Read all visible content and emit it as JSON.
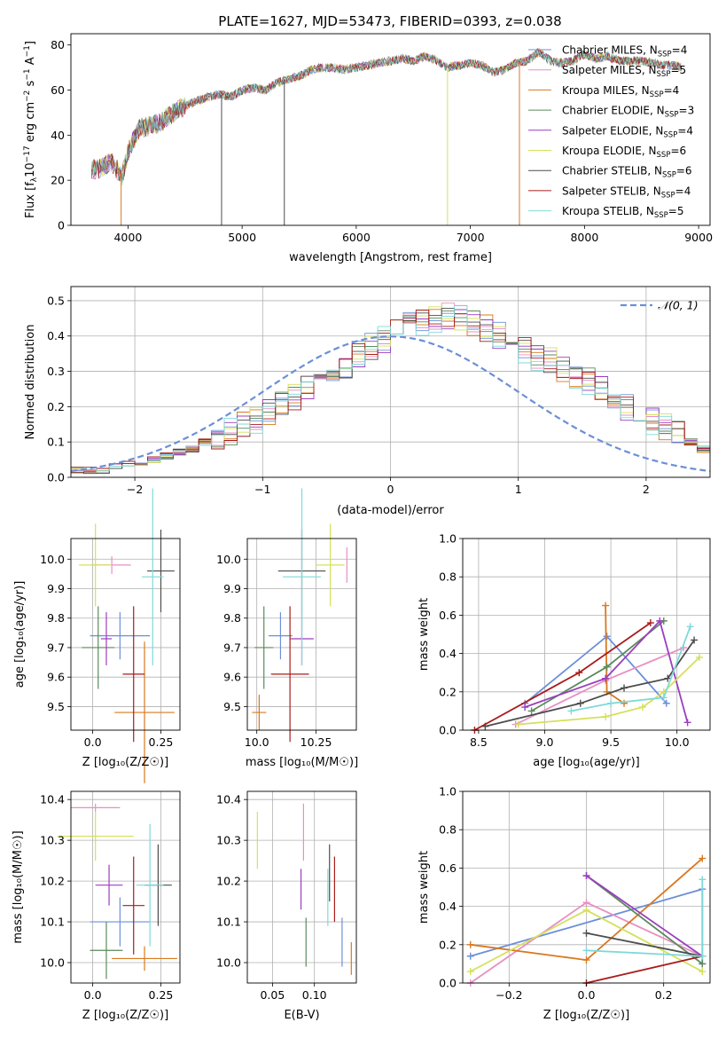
{
  "figure_title": "PLATE=1627, MJD=53473, FIBERID=0393, z=0.038",
  "palette": [
    "#6c8fd8",
    "#e88fc4",
    "#d9781f",
    "#5a8a5a",
    "#9b3dbf",
    "#d4e05a",
    "#4d4d4d",
    "#a81c1c",
    "#7fd9d9"
  ],
  "chart_data": [
    {
      "id": "spectrum",
      "type": "line",
      "title": "PLATE=1627, MJD=53473, FIBERID=0393, z=0.038",
      "xlabel": "wavelength [Angstrom, rest frame]",
      "ylabel": "Flux [f_λ 10^-17 erg cm^-2 s^-1 A^-1]",
      "xlim": [
        3500,
        9100
      ],
      "ylim": [
        0,
        85
      ],
      "xticks": [
        4000,
        5000,
        6000,
        7000,
        8000,
        9000
      ],
      "yticks": [
        0,
        20,
        40,
        60,
        80
      ],
      "grid": false,
      "legend_position": "upper right",
      "continuum": {
        "x": [
          3680,
          3750,
          3850,
          3950,
          4000,
          4100,
          4200,
          4300,
          4400,
          4500,
          4600,
          4700,
          4800,
          4900,
          5000,
          5100,
          5200,
          5300,
          5400,
          5500,
          5600,
          5700,
          5800,
          5900,
          6000,
          6100,
          6200,
          6300,
          6400,
          6500,
          6600,
          6700,
          6800,
          6900,
          7000,
          7100,
          7200,
          7300,
          7400,
          7500,
          7600,
          7700,
          7800,
          7900,
          8000,
          8100,
          8200,
          8300,
          8400,
          8500,
          8600,
          8700,
          8800,
          8850
        ],
        "y": [
          25,
          25,
          28,
          22,
          33,
          43,
          44,
          46,
          50,
          53,
          55,
          57,
          58,
          57,
          60,
          61,
          60,
          63,
          65,
          66,
          69,
          70,
          70,
          69,
          70,
          71,
          72,
          73,
          74,
          73,
          75,
          73,
          70,
          71,
          72,
          71,
          68,
          69,
          72,
          73,
          77,
          73,
          72,
          73,
          76,
          74,
          75,
          73,
          73,
          73,
          72,
          71,
          71,
          70
        ]
      },
      "series": [
        {
          "name": "Chabrier MILES, N_SSP=4"
        },
        {
          "name": "Salpeter MILES, N_SSP=5"
        },
        {
          "name": "Kroupa MILES, N_SSP=4"
        },
        {
          "name": "Chabrier ELODIE, N_SSP=3"
        },
        {
          "name": "Salpeter ELODIE, N_SSP=4"
        },
        {
          "name": "Kroupa ELODIE, N_SSP=6"
        },
        {
          "name": "Chabrier STELIB, N_SSP=6"
        },
        {
          "name": "Salpeter STELIB, N_SSP=4"
        },
        {
          "name": "Kroupa STELIB, N_SSP=5"
        }
      ],
      "spikes": [
        {
          "x": 3940,
          "series": 2
        },
        {
          "x": 4820,
          "series": 6
        },
        {
          "x": 5370,
          "series": 6
        },
        {
          "x": 6800,
          "series": 5
        },
        {
          "x": 7430,
          "series": 2
        }
      ]
    },
    {
      "id": "residuals",
      "type": "histogram",
      "xlabel": "(data-model)/error",
      "ylabel": "Normed distribution",
      "xlim": [
        -2.5,
        2.5
      ],
      "ylim": [
        0,
        0.54
      ],
      "xticks": [
        -2,
        -1,
        0,
        1,
        2
      ],
      "yticks": [
        0.0,
        0.1,
        0.2,
        0.3,
        0.4,
        0.5
      ],
      "grid": true,
      "legend_position": "upper right",
      "legend": "𝒩(0, 1)",
      "bin_width": 0.1,
      "bin_start": -2.5,
      "envelope": [
        0.02,
        0.02,
        0.02,
        0.03,
        0.04,
        0.04,
        0.05,
        0.06,
        0.07,
        0.08,
        0.1,
        0.11,
        0.13,
        0.15,
        0.16,
        0.18,
        0.21,
        0.23,
        0.25,
        0.28,
        0.3,
        0.32,
        0.35,
        0.37,
        0.39,
        0.41,
        0.43,
        0.44,
        0.45,
        0.46,
        0.45,
        0.44,
        0.42,
        0.4,
        0.38,
        0.36,
        0.34,
        0.33,
        0.31,
        0.29,
        0.27,
        0.25,
        0.23,
        0.2,
        0.18,
        0.16,
        0.14,
        0.12,
        0.1,
        0.08,
        0.07,
        0.06,
        0.05,
        0.04,
        0.03,
        0.03,
        0.02,
        0.02,
        0.02,
        0.02,
        0.02,
        0.02,
        0.02,
        0.02,
        0.02,
        0.02,
        0.02,
        0.02,
        0.02,
        0.02,
        0.02,
        0.02,
        0.02,
        0.02,
        0.02,
        0.02,
        0.02,
        0.02,
        0.02,
        0.02
      ]
    },
    {
      "id": "age-vs-Z",
      "type": "scatter",
      "xlabel": "Z [log10(Z/Z☉)]",
      "ylabel": "age [log10(age/yr)]",
      "xlim": [
        -0.08,
        0.32
      ],
      "ylim": [
        9.42,
        10.07
      ],
      "xticks": [
        0.0,
        0.25
      ],
      "yticks": [
        9.5,
        9.6,
        9.7,
        9.8,
        9.9,
        10.0
      ],
      "grid": true,
      "points": [
        {
          "x": 0.1,
          "y": 9.74,
          "xerr": 0.11,
          "yerr": 0.08
        },
        {
          "x": 0.07,
          "y": 9.98,
          "xerr": 0.07,
          "yerr": 0.03
        },
        {
          "x": 0.19,
          "y": 9.48,
          "xerr": 0.11,
          "yerr": 0.24
        },
        {
          "x": 0.02,
          "y": 9.7,
          "xerr": 0.06,
          "yerr": 0.14
        },
        {
          "x": 0.05,
          "y": 9.73,
          "xerr": 0.02,
          "yerr": 0.09
        },
        {
          "x": 0.01,
          "y": 9.98,
          "xerr": 0.06,
          "yerr": 0.14
        },
        {
          "x": 0.25,
          "y": 9.96,
          "xerr": 0.05,
          "yerr": 0.14
        },
        {
          "x": 0.15,
          "y": 9.61,
          "xerr": 0.04,
          "yerr": 0.23
        },
        {
          "x": 0.22,
          "y": 9.94,
          "xerr": 0.04,
          "yerr": 0.3
        }
      ]
    },
    {
      "id": "age-vs-mass",
      "type": "scatter",
      "xlabel": "mass [log10(M/M☉)]",
      "ylabel": "",
      "xlim": [
        9.96,
        10.42
      ],
      "ylim": [
        9.42,
        10.07
      ],
      "xticks": [
        10.0,
        10.25
      ],
      "yticks": [
        9.5,
        9.6,
        9.7,
        9.8,
        9.9,
        10.0
      ],
      "grid": true,
      "points": [
        {
          "x": 10.1,
          "y": 9.74,
          "xerr": 0.05,
          "yerr": 0.08
        },
        {
          "x": 10.38,
          "y": 9.98,
          "xerr": 0.0,
          "yerr": 0.06
        },
        {
          "x": 10.01,
          "y": 9.48,
          "xerr": 0.03,
          "yerr": 0.06
        },
        {
          "x": 10.03,
          "y": 9.7,
          "xerr": 0.04,
          "yerr": 0.14
        },
        {
          "x": 10.19,
          "y": 9.73,
          "xerr": 0.05,
          "yerr": 0.09
        },
        {
          "x": 10.31,
          "y": 9.98,
          "xerr": 0.06,
          "yerr": 0.14
        },
        {
          "x": 10.19,
          "y": 9.96,
          "xerr": 0.1,
          "yerr": 0.14
        },
        {
          "x": 10.14,
          "y": 9.61,
          "xerr": 0.08,
          "yerr": 0.23
        },
        {
          "x": 10.19,
          "y": 9.94,
          "xerr": 0.08,
          "yerr": 0.3
        }
      ]
    },
    {
      "id": "massweight-vs-age",
      "type": "line",
      "xlabel": "age [log10(age/yr)]",
      "ylabel": "mass weight",
      "xlim": [
        8.38,
        10.25
      ],
      "ylim": [
        0,
        1.0
      ],
      "xticks": [
        8.5,
        9.0,
        9.5,
        10.0
      ],
      "yticks": [
        0.0,
        0.2,
        0.4,
        0.6,
        0.8,
        1.0
      ],
      "grid": true,
      "series": [
        {
          "series": 0,
          "x": [
            8.85,
            9.47,
            9.92
          ],
          "y": [
            0.14,
            0.49,
            0.14
          ]
        },
        {
          "series": 1,
          "x": [
            8.78,
            9.46,
            10.05
          ],
          "y": [
            0.03,
            0.26,
            0.43
          ]
        },
        {
          "series": 2,
          "x": [
            9.46,
            9.47,
            9.6
          ],
          "y": [
            0.65,
            0.2,
            0.14
          ]
        },
        {
          "series": 3,
          "x": [
            8.9,
            9.47,
            9.9
          ],
          "y": [
            0.1,
            0.33,
            0.57
          ]
        },
        {
          "series": 4,
          "x": [
            8.85,
            9.46,
            9.87,
            10.08
          ],
          "y": [
            0.12,
            0.27,
            0.57,
            0.04
          ]
        },
        {
          "series": 5,
          "x": [
            8.8,
            9.46,
            9.74,
            9.9,
            10.17
          ],
          "y": [
            0.03,
            0.07,
            0.12,
            0.2,
            0.38
          ]
        },
        {
          "series": 6,
          "x": [
            8.55,
            9.27,
            9.6,
            9.93,
            10.13
          ],
          "y": [
            0.02,
            0.14,
            0.22,
            0.27,
            0.47
          ]
        },
        {
          "series": 7,
          "x": [
            8.47,
            9.26,
            9.8
          ],
          "y": [
            0.0,
            0.3,
            0.56
          ]
        },
        {
          "series": 8,
          "x": [
            9.2,
            9.5,
            9.9,
            10.1
          ],
          "y": [
            0.1,
            0.14,
            0.17,
            0.54
          ]
        }
      ]
    },
    {
      "id": "mass-vs-Z",
      "type": "scatter",
      "xlabel": "Z [log10(Z/Z☉)]",
      "ylabel": "mass [log10(M/M☉)]",
      "xlim": [
        -0.08,
        0.32
      ],
      "ylim": [
        9.95,
        10.42
      ],
      "xticks": [
        0.0,
        0.25
      ],
      "yticks": [
        10.0,
        10.1,
        10.2,
        10.3,
        10.4
      ],
      "grid": true,
      "points": [
        {
          "x": 0.1,
          "y": 10.1,
          "xerr": 0.11,
          "yerr": 0.06
        },
        {
          "x": 0.01,
          "y": 10.38,
          "xerr": 0.09,
          "yerr": 0.01
        },
        {
          "x": 0.19,
          "y": 10.01,
          "xerr": 0.12,
          "yerr": 0.03
        },
        {
          "x": 0.05,
          "y": 10.03,
          "xerr": 0.06,
          "yerr": 0.07
        },
        {
          "x": 0.06,
          "y": 10.19,
          "xerr": 0.05,
          "yerr": 0.05
        },
        {
          "x": 0.01,
          "y": 10.31,
          "xerr": 0.14,
          "yerr": 0.06
        },
        {
          "x": 0.24,
          "y": 10.19,
          "xerr": 0.05,
          "yerr": 0.1
        },
        {
          "x": 0.15,
          "y": 10.14,
          "xerr": 0.04,
          "yerr": 0.12
        },
        {
          "x": 0.21,
          "y": 10.19,
          "xerr": 0.05,
          "yerr": 0.15
        }
      ]
    },
    {
      "id": "mass-vs-EBV",
      "type": "scatter",
      "xlabel": "E(B-V)",
      "ylabel": "",
      "xlim": [
        0.02,
        0.15
      ],
      "ylim": [
        9.95,
        10.42
      ],
      "xticks": [
        0.05,
        0.1
      ],
      "yticks": [
        10.0,
        10.1,
        10.2,
        10.3,
        10.4
      ],
      "grid": true,
      "points": [
        {
          "x": 0.133,
          "y": 10.05,
          "xerr": 0,
          "yerr": 0.06
        },
        {
          "x": 0.087,
          "y": 10.32,
          "xerr": 0,
          "yerr": 0.07
        },
        {
          "x": 0.144,
          "y": 10.01,
          "xerr": 0,
          "yerr": 0.04
        },
        {
          "x": 0.09,
          "y": 10.05,
          "xerr": 0,
          "yerr": 0.06
        },
        {
          "x": 0.084,
          "y": 10.18,
          "xerr": 0,
          "yerr": 0.05
        },
        {
          "x": 0.032,
          "y": 10.3,
          "xerr": 0,
          "yerr": 0.07
        },
        {
          "x": 0.118,
          "y": 10.22,
          "xerr": 0,
          "yerr": 0.07
        },
        {
          "x": 0.124,
          "y": 10.18,
          "xerr": 0,
          "yerr": 0.08
        },
        {
          "x": 0.116,
          "y": 10.16,
          "xerr": 0,
          "yerr": 0.07
        }
      ]
    },
    {
      "id": "massweight-vs-Z",
      "type": "line",
      "xlabel": "Z [log10(Z/Z☉)]",
      "ylabel": "mass weight",
      "xlim": [
        -0.32,
        0.32
      ],
      "ylim": [
        0,
        1.0
      ],
      "xticks": [
        -0.2,
        0.0,
        0.2
      ],
      "yticks": [
        0.0,
        0.2,
        0.4,
        0.6,
        0.8,
        1.0
      ],
      "grid": true,
      "series": [
        {
          "series": 0,
          "x": [
            -0.3,
            0.3,
            0.3
          ],
          "y": [
            0.14,
            0.49,
            0.1
          ]
        },
        {
          "series": 1,
          "x": [
            -0.3,
            0.0,
            0.3
          ],
          "y": [
            0.0,
            0.42,
            0.14
          ]
        },
        {
          "series": 2,
          "x": [
            -0.3,
            0.0,
            0.3
          ],
          "y": [
            0.2,
            0.12,
            0.65
          ]
        },
        {
          "series": 3,
          "x": [
            0.0,
            0.3
          ],
          "y": [
            0.56,
            0.1
          ]
        },
        {
          "series": 4,
          "x": [
            0.0,
            0.3
          ],
          "y": [
            0.56,
            0.14
          ]
        },
        {
          "series": 5,
          "x": [
            -0.3,
            0.0,
            0.3
          ],
          "y": [
            0.06,
            0.38,
            0.06
          ]
        },
        {
          "series": 6,
          "x": [
            0.0,
            0.3
          ],
          "y": [
            0.26,
            0.14
          ]
        },
        {
          "series": 7,
          "x": [
            0.0,
            0.3
          ],
          "y": [
            0.0,
            0.14
          ]
        },
        {
          "series": 8,
          "x": [
            0.0,
            0.3,
            0.3
          ],
          "y": [
            0.17,
            0.14,
            0.54
          ]
        }
      ]
    }
  ]
}
